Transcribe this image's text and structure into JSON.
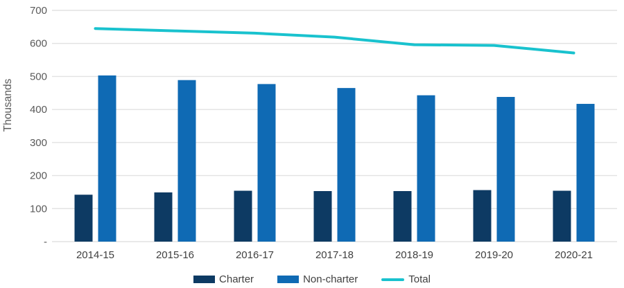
{
  "chart_data": {
    "type": "bar",
    "categories": [
      "2014-15",
      "2015-16",
      "2016-17",
      "2017-18",
      "2018-19",
      "2019-20",
      "2020-21"
    ],
    "series": [
      {
        "name": "Charter",
        "type": "bar",
        "color": "#0d3a63",
        "values": [
          142,
          149,
          154,
          153,
          153,
          156,
          154
        ]
      },
      {
        "name": "Non-charter",
        "type": "bar",
        "color": "#0f6ab4",
        "values": [
          503,
          489,
          477,
          465,
          443,
          438,
          417
        ]
      },
      {
        "name": "Total",
        "type": "line",
        "color": "#19c2ce",
        "values": [
          645,
          638,
          631,
          619,
          596,
          594,
          571
        ]
      }
    ],
    "ylabel": "Thousands",
    "ylim": [
      0,
      700
    ],
    "ytick_step": 100,
    "yticks": [
      {
        "value": 0,
        "label": "-"
      },
      {
        "value": 100,
        "label": "100"
      },
      {
        "value": 200,
        "label": "200"
      },
      {
        "value": 300,
        "label": "300"
      },
      {
        "value": 400,
        "label": "400"
      },
      {
        "value": 500,
        "label": "500"
      },
      {
        "value": 600,
        "label": "600"
      },
      {
        "value": 700,
        "label": "700"
      }
    ],
    "grid": true,
    "legend_position": "bottom",
    "colors": {
      "gridline": "#e2e2e2",
      "tick_text": "#595959",
      "axis_text": "#3f3f3f"
    }
  }
}
